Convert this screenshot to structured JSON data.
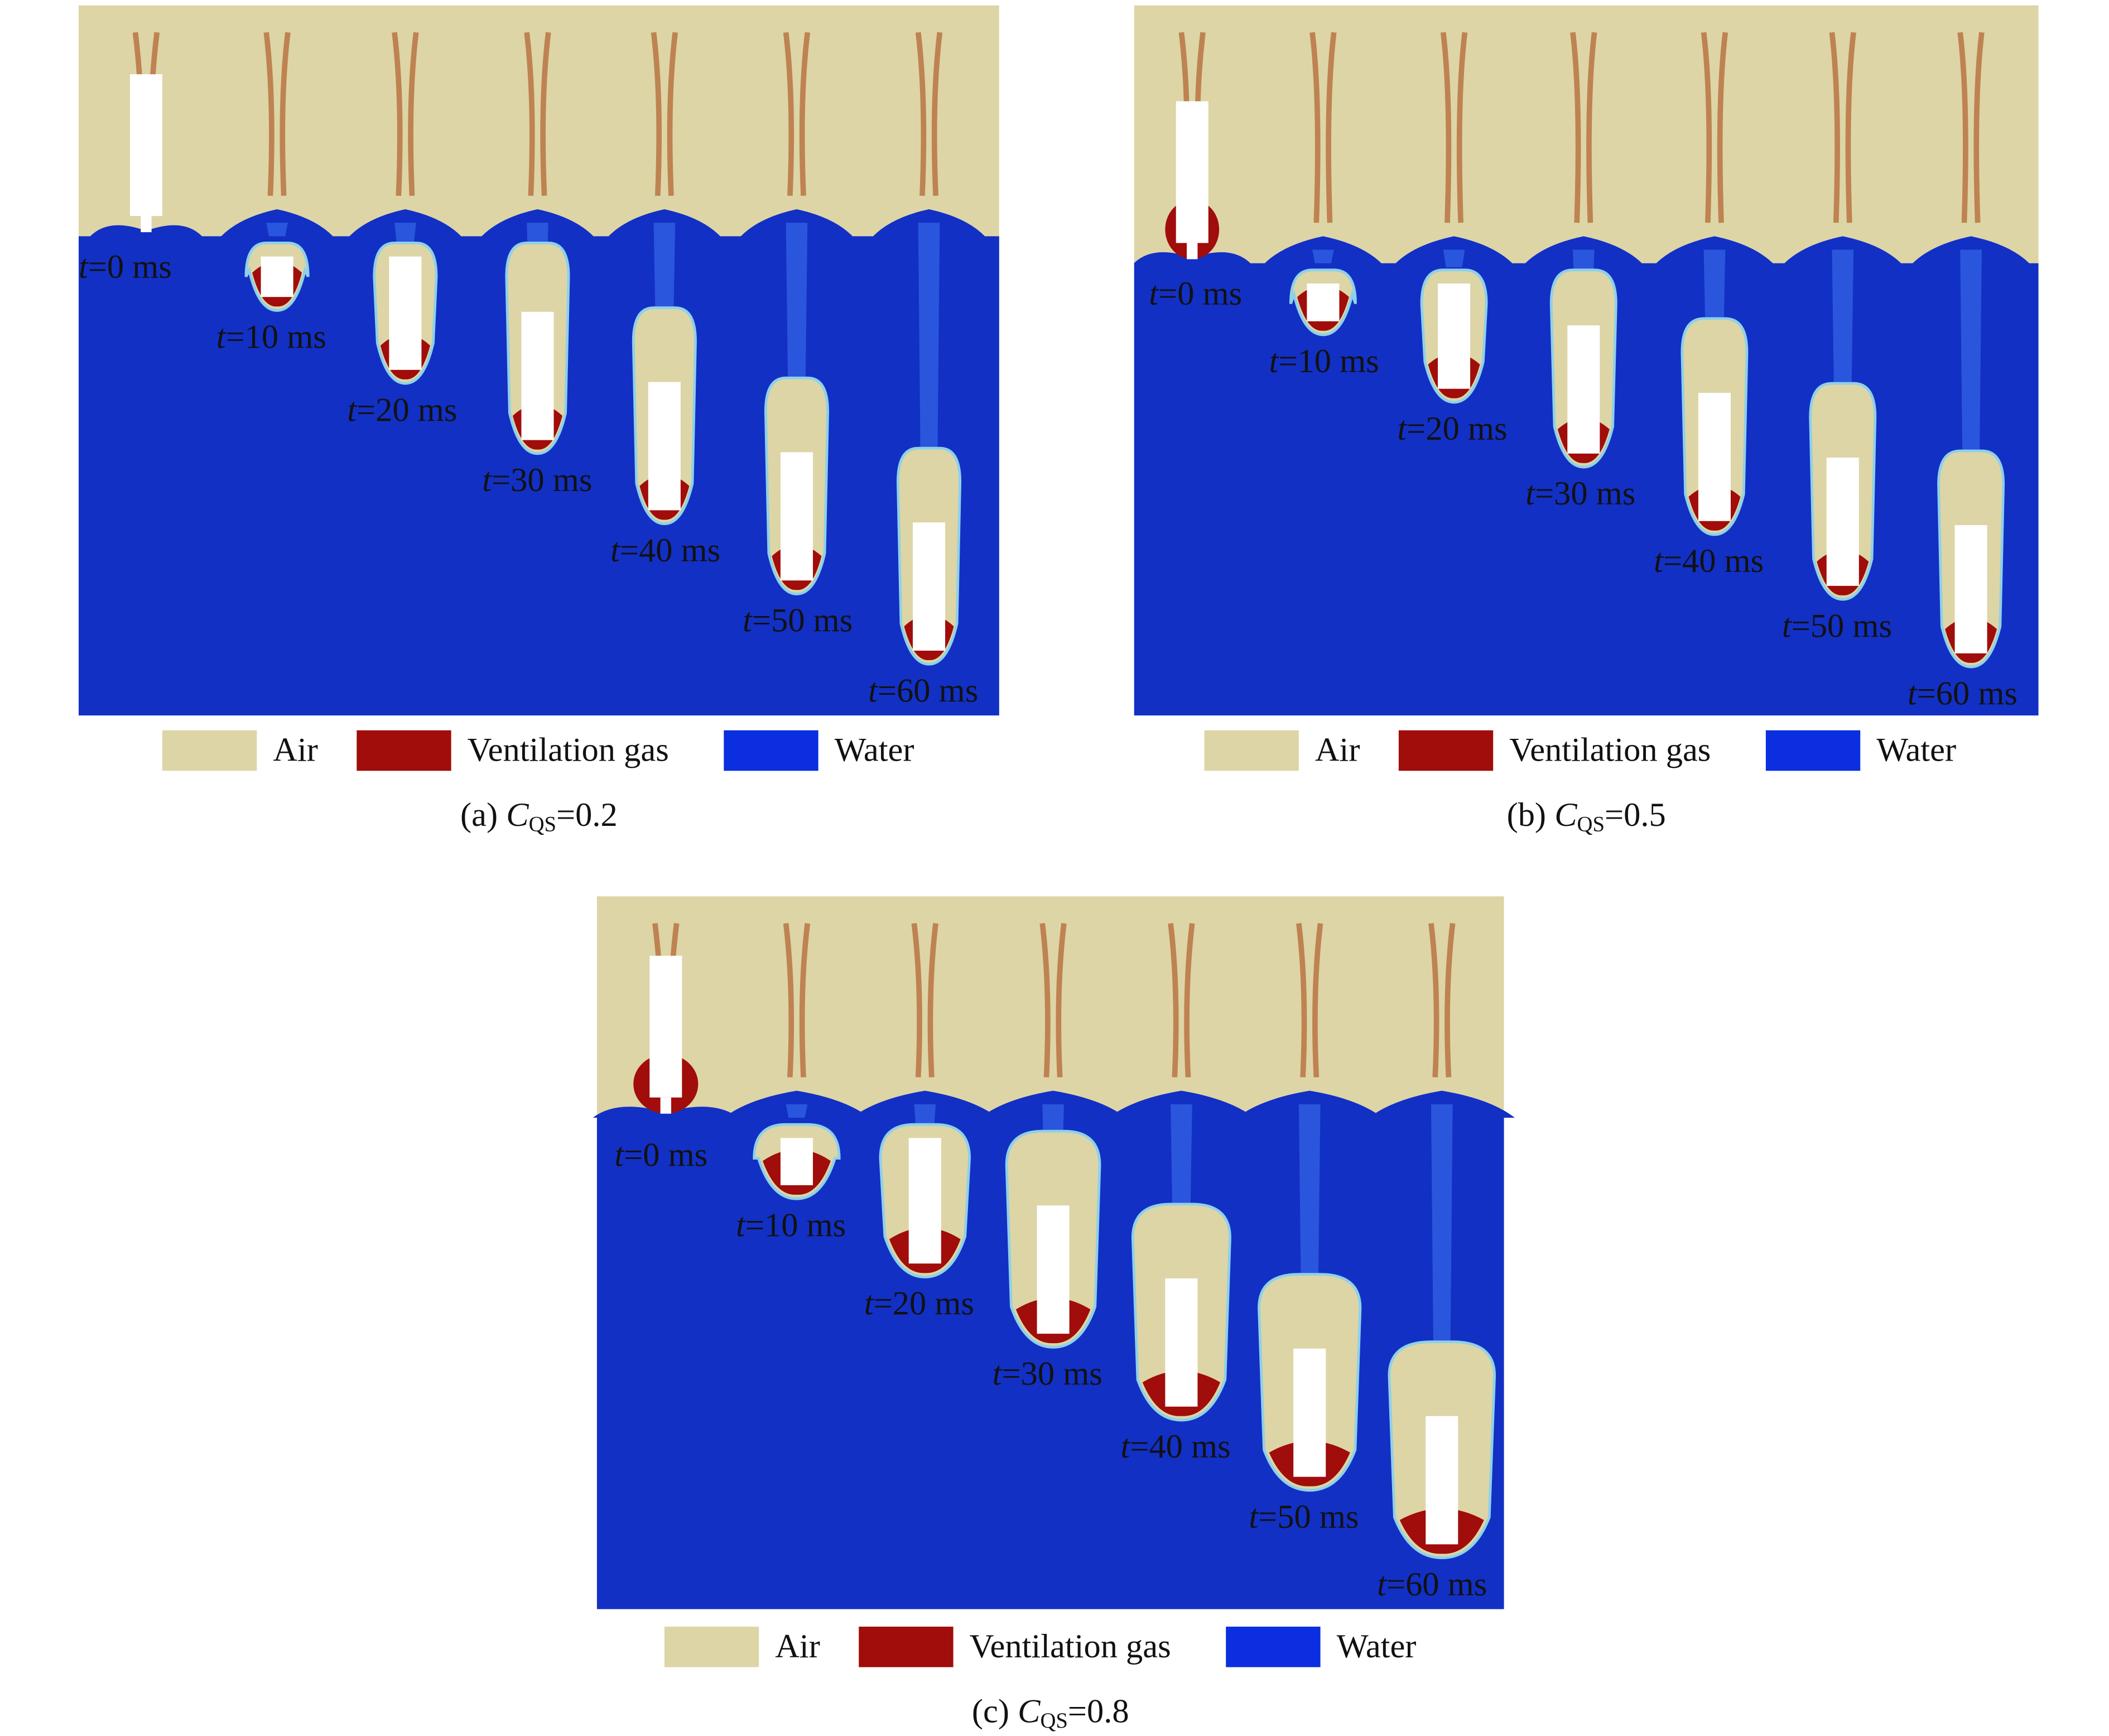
{
  "panels": [
    {
      "time_symbol": "t",
      "times": [
        "=0 ms",
        "=10 ms",
        "=20 ms",
        "=30 ms",
        "=40 ms",
        "=50 ms",
        "=60 ms"
      ],
      "legend": [
        {
          "label": "Air",
          "color": "#ddd5a6"
        },
        {
          "label": "Ventilation gas",
          "color": "#a00d0a"
        },
        {
          "label": "Water",
          "color": "#0a2ee0"
        }
      ],
      "caption": {
        "prefix": "(a) ",
        "symbol": "C",
        "subscript": "QS",
        "value": "=0.2"
      }
    },
    {
      "time_symbol": "t",
      "times": [
        "=0 ms",
        "=10 ms",
        "=20 ms",
        "=30 ms",
        "=40 ms",
        "=50 ms",
        "=60 ms"
      ],
      "legend": [
        {
          "label": "Air",
          "color": "#ddd5a6"
        },
        {
          "label": "Ventilation gas",
          "color": "#a00d0a"
        },
        {
          "label": "Water",
          "color": "#0a2ee0"
        }
      ],
      "caption": {
        "prefix": "(b) ",
        "symbol": "C",
        "subscript": "QS",
        "value": "=0.5"
      }
    },
    {
      "time_symbol": "t",
      "times": [
        "=0 ms",
        "=10 ms",
        "=20 ms",
        "=30 ms",
        "=40 ms",
        "=50 ms",
        "=60 ms"
      ],
      "legend": [
        {
          "label": "Air",
          "color": "#ddd5a6"
        },
        {
          "label": "Ventilation gas",
          "color": "#a00d0a"
        },
        {
          "label": "Water",
          "color": "#0a2ee0"
        }
      ],
      "caption": {
        "prefix": "(c) ",
        "symbol": "C",
        "subscript": "QS",
        "value": "=0.8"
      }
    }
  ]
}
